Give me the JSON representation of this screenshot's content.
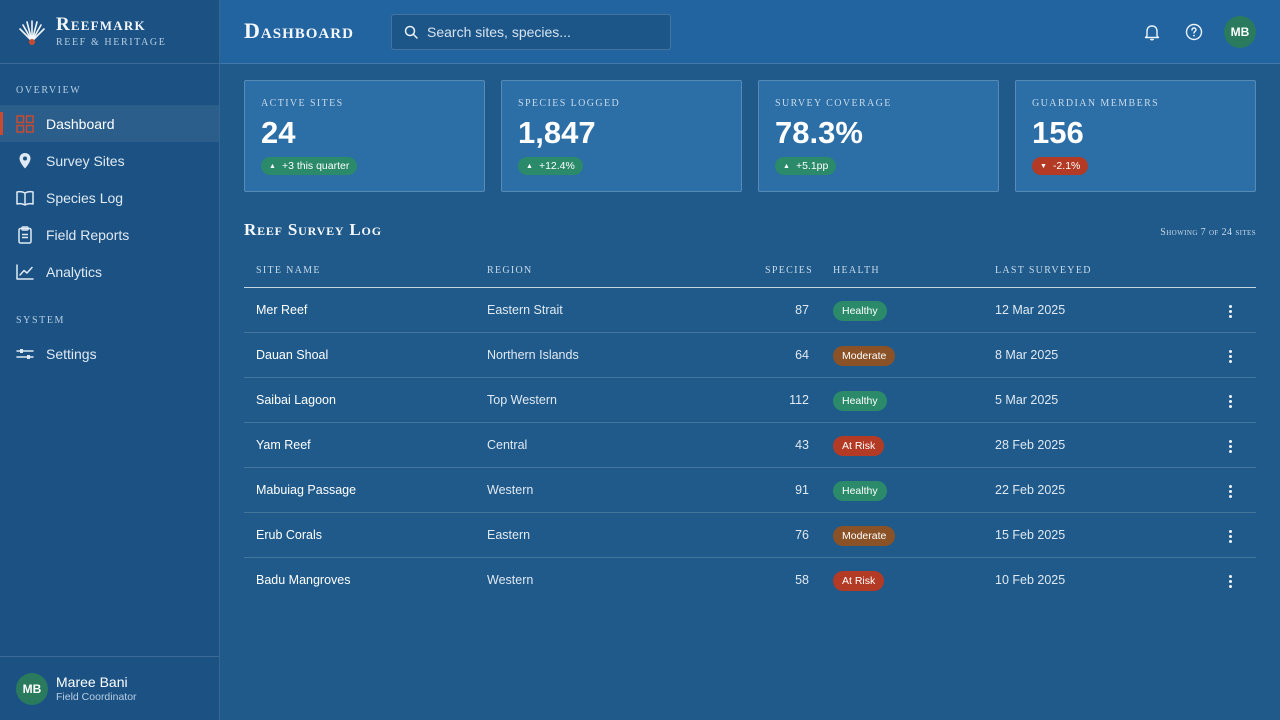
{
  "brand": {
    "name": "Reefmark",
    "subtitle": "Reef & Heritage"
  },
  "sidebar": {
    "sections": [
      {
        "title": "Overview"
      },
      {
        "title": "System"
      }
    ],
    "items": [
      {
        "label": "Dashboard",
        "icon": "grid-icon",
        "active": true
      },
      {
        "label": "Survey Sites",
        "icon": "map-pin-icon"
      },
      {
        "label": "Species Log",
        "icon": "book-icon"
      },
      {
        "label": "Field Reports",
        "icon": "clipboard-icon"
      },
      {
        "label": "Analytics",
        "icon": "chart-line-icon"
      },
      {
        "label": "Settings",
        "icon": "sliders-icon"
      }
    ],
    "user": {
      "initials": "MB",
      "name": "Maree Bani",
      "role": "Field Coordinator"
    }
  },
  "header": {
    "title": "Dashboard",
    "search_placeholder": "Search sites, species...",
    "user_initials": "MB"
  },
  "stats": [
    {
      "label": "Active Sites",
      "value": "24",
      "delta": "+3 this quarter",
      "trend": "up"
    },
    {
      "label": "Species Logged",
      "value": "1,847",
      "delta": "+12.4%",
      "trend": "up"
    },
    {
      "label": "Survey Coverage",
      "value": "78.3%",
      "delta": "+5.1pp",
      "trend": "up"
    },
    {
      "label": "Guardian Members",
      "value": "156",
      "delta": "-2.1%",
      "trend": "down"
    }
  ],
  "table": {
    "title": "Reef Survey Log",
    "meta": "Showing 7 of 24 sites",
    "columns": [
      "Site Name",
      "Region",
      "Species",
      "Health",
      "Last Surveyed"
    ],
    "rows": [
      {
        "site": "Mer Reef",
        "region": "Eastern Strait",
        "species": "87",
        "health": "Healthy",
        "status": "healthy",
        "date": "12 Mar 2025"
      },
      {
        "site": "Dauan Shoal",
        "region": "Northern Islands",
        "species": "64",
        "health": "Moderate",
        "status": "moderate",
        "date": "8 Mar 2025"
      },
      {
        "site": "Saibai Lagoon",
        "region": "Top Western",
        "species": "112",
        "health": "Healthy",
        "status": "healthy",
        "date": "5 Mar 2025"
      },
      {
        "site": "Yam Reef",
        "region": "Central",
        "species": "43",
        "health": "At Risk",
        "status": "atrisk",
        "date": "28 Feb 2025"
      },
      {
        "site": "Mabuiag Passage",
        "region": "Western",
        "species": "91",
        "health": "Healthy",
        "status": "healthy",
        "date": "22 Feb 2025"
      },
      {
        "site": "Erub Corals",
        "region": "Eastern",
        "species": "76",
        "health": "Moderate",
        "status": "moderate",
        "date": "15 Feb 2025"
      },
      {
        "site": "Badu Mangroves",
        "region": "Western",
        "species": "58",
        "health": "At Risk",
        "status": "atrisk",
        "date": "10 Feb 2025"
      }
    ]
  },
  "colors": {
    "background": "#1f5a8a",
    "sidebar": "#1b5283",
    "accent": "#c84b31",
    "healthy": "#2a8a6a",
    "moderate": "#8a5226",
    "at_risk": "#b33a24"
  }
}
